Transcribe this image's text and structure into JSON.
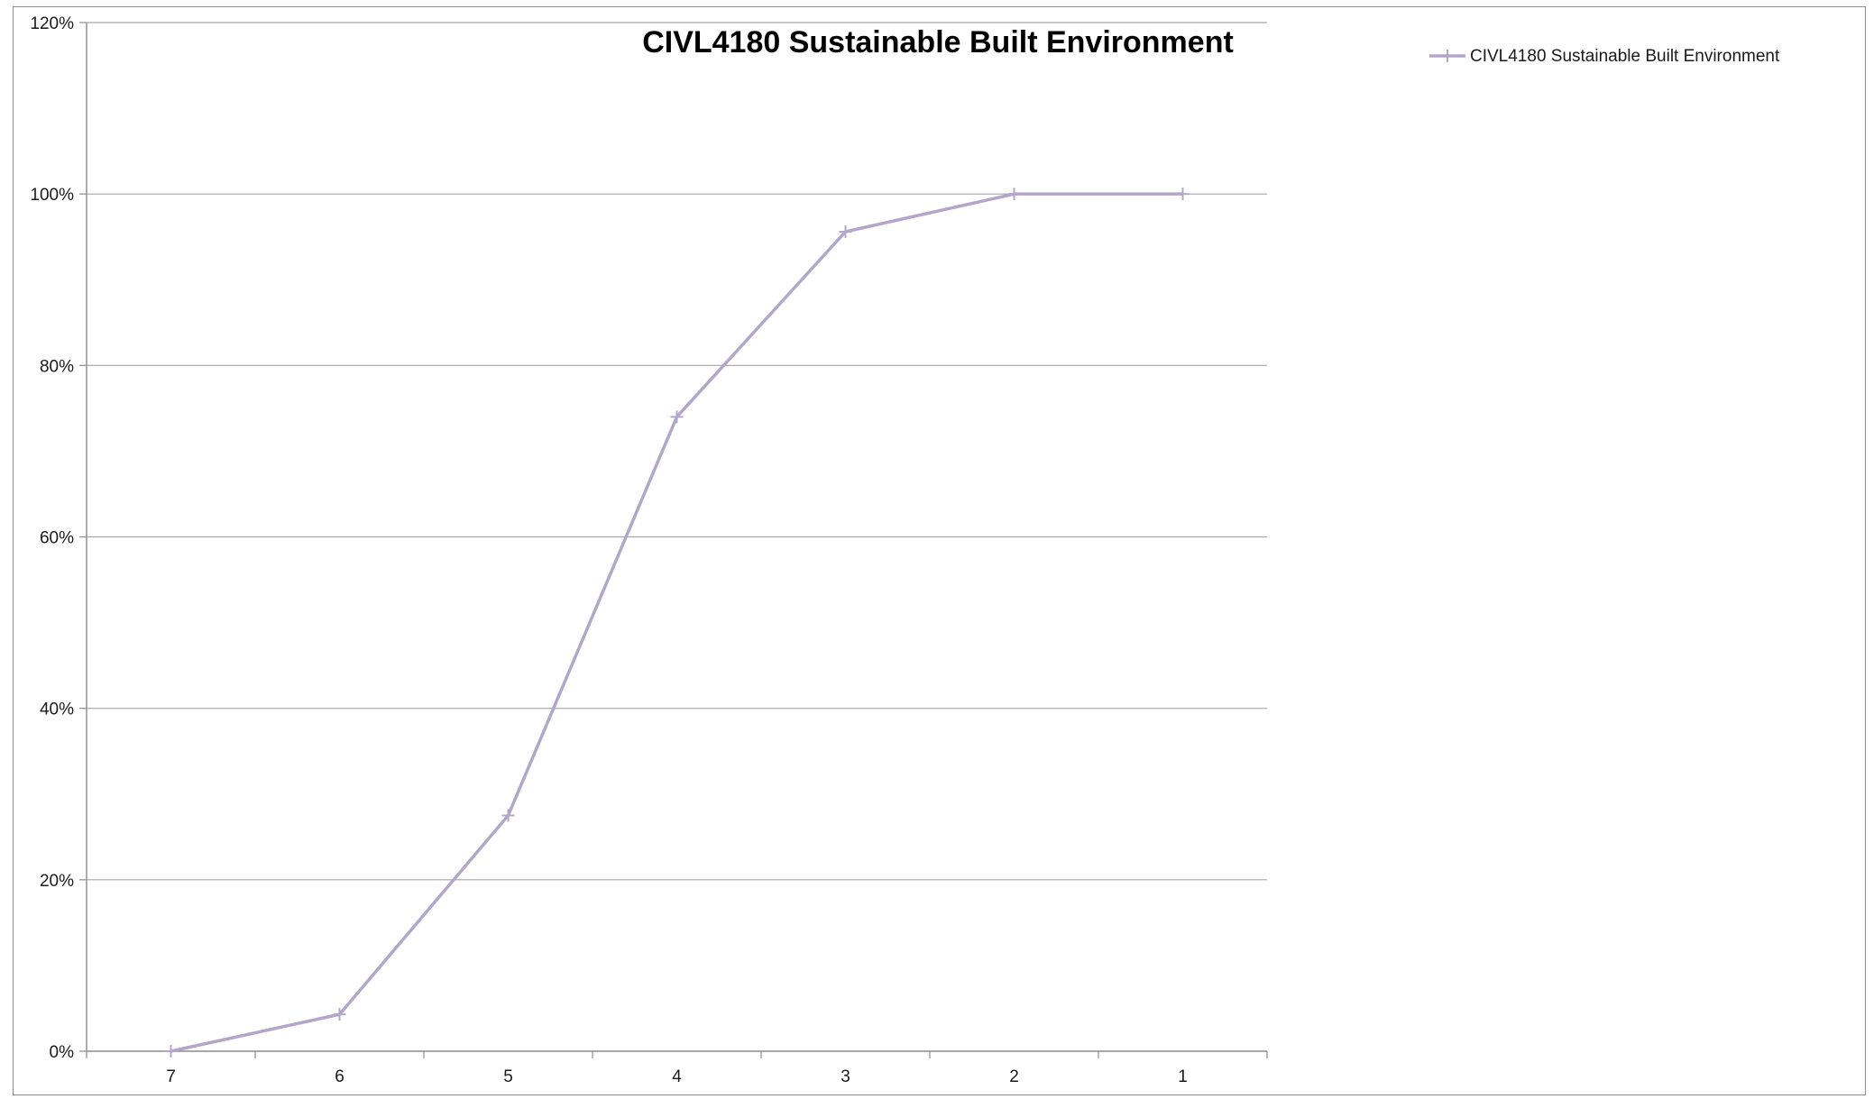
{
  "chart_data": {
    "type": "line",
    "title": "CIVL4180 Sustainable Built Environment",
    "xlabel": "",
    "ylabel": "",
    "categories": [
      "7",
      "6",
      "5",
      "4",
      "3",
      "2",
      "1"
    ],
    "series": [
      {
        "name": "CIVL4180 Sustainable Built Environment",
        "values": [
          0.0,
          0.043,
          0.275,
          0.74,
          0.956,
          1.0,
          1.0
        ],
        "color": "#b3a7c9",
        "marker": "plus"
      }
    ],
    "ylim": [
      0,
      1.2
    ],
    "yticks": [
      0,
      0.2,
      0.4,
      0.6,
      0.8,
      1.0,
      1.2
    ],
    "ytick_labels": [
      "0%",
      "20%",
      "40%",
      "60%",
      "80%",
      "100%",
      "120%"
    ],
    "grid": true,
    "legend_position": "top-right",
    "colors": {
      "gridline": "#a6a6a6",
      "axis": "#8c8c8c",
      "frame": "#8c8c8c"
    }
  }
}
